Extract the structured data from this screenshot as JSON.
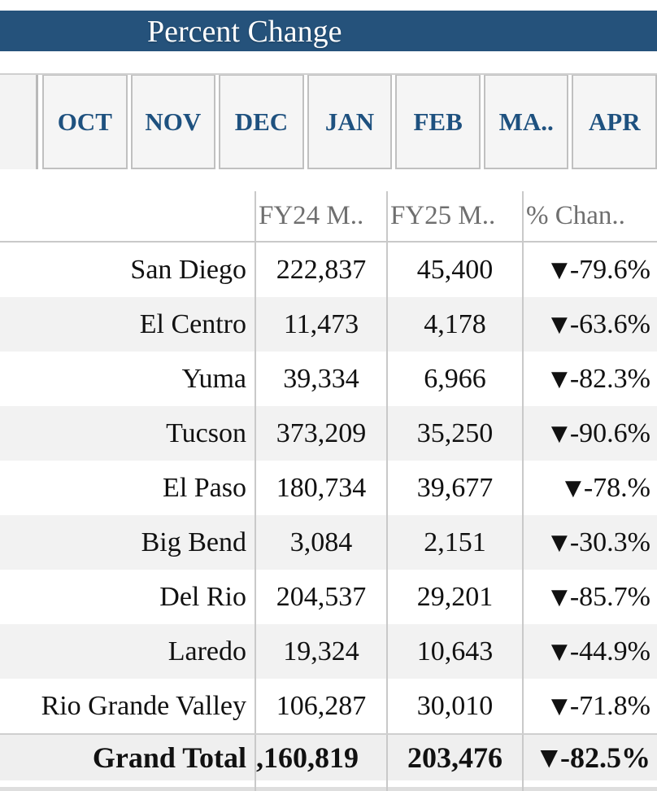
{
  "title": "Percent Change",
  "tabs": [
    "OCT",
    "NOV",
    "DEC",
    "JAN",
    "FEB",
    "MA..",
    "APR"
  ],
  "table": {
    "columns": [
      "",
      "FY24 M..",
      "FY25 M..",
      "% Chan.."
    ],
    "down_arrow": "▼",
    "rows": [
      {
        "label": "San Diego",
        "fy24": "222,837",
        "fy25": "45,400",
        "pct": "-79.6%"
      },
      {
        "label": "El Centro",
        "fy24": "11,473",
        "fy25": "4,178",
        "pct": "-63.6%"
      },
      {
        "label": "Yuma",
        "fy24": "39,334",
        "fy25": "6,966",
        "pct": "-82.3%"
      },
      {
        "label": "Tucson",
        "fy24": "373,209",
        "fy25": "35,250",
        "pct": "-90.6%"
      },
      {
        "label": "El Paso",
        "fy24": "180,734",
        "fy25": "39,677",
        "pct": "-78.%"
      },
      {
        "label": "Big Bend",
        "fy24": "3,084",
        "fy25": "2,151",
        "pct": "-30.3%"
      },
      {
        "label": "Del Rio",
        "fy24": "204,537",
        "fy25": "29,201",
        "pct": "-85.7%"
      },
      {
        "label": "Laredo",
        "fy24": "19,324",
        "fy25": "10,643",
        "pct": "-44.9%"
      },
      {
        "label": "Rio Grande Valley",
        "fy24": "106,287",
        "fy25": "30,010",
        "pct": "-71.8%"
      }
    ],
    "grand_total": {
      "label": "Grand Total",
      "fy24": ",160,819",
      "fy25": "203,476",
      "pct": "-82.5%"
    }
  },
  "colors": {
    "header_bar_blue": "#25527b",
    "tab_text_blue": "#1e517f",
    "header_text_gray": "#6f6f6f",
    "row_stripe_gray": "#f2f2f2",
    "grand_total_gray": "#efefef",
    "divider_gray": "#c9c9c9"
  }
}
